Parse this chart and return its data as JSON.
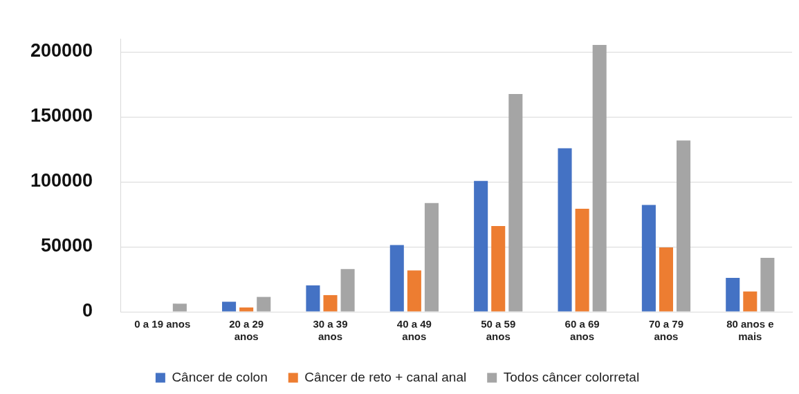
{
  "chart_data": {
    "type": "bar",
    "categories": [
      "0 a 19 anos",
      "20 a 29 anos",
      "30 a 39 anos",
      "40 a 49 anos",
      "50 a 59 anos",
      "60 a 69 anos",
      "70 a 79 anos",
      "80 anos e mais"
    ],
    "series": [
      {
        "name": "Câncer de colon",
        "color": "#4472c4",
        "values": [
          0,
          7700,
          20300,
          51300,
          100700,
          125800,
          82200,
          26000
        ]
      },
      {
        "name": "Câncer de reto + canal anal",
        "color": "#ed7d31",
        "values": [
          0,
          3300,
          12800,
          31800,
          66000,
          79300,
          49500,
          15600
        ]
      },
      {
        "name": "Todos câncer colorretal",
        "color": "#a5a5a5",
        "values": [
          6200,
          11400,
          32800,
          83600,
          167500,
          205300,
          131800,
          41500
        ]
      }
    ],
    "ylim": [
      0,
      210000
    ],
    "yticks": [
      0,
      50000,
      100000,
      150000,
      200000
    ],
    "grid": "y",
    "legend": "bottom"
  }
}
